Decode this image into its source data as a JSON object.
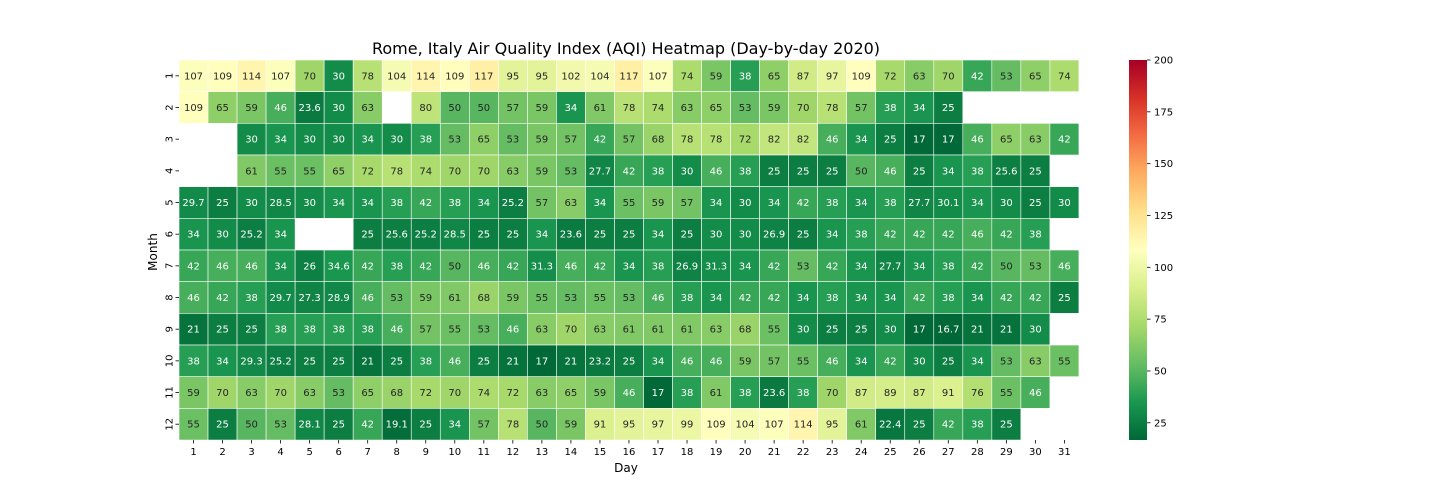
{
  "chart_data": {
    "type": "heatmap",
    "title": "Rome, Italy Air Quality Index (AQI) Heatmap (Day-by-day 2020)",
    "xlabel": "Day",
    "ylabel": "Month",
    "x": [
      "1",
      "2",
      "3",
      "4",
      "5",
      "6",
      "7",
      "8",
      "9",
      "10",
      "11",
      "12",
      "13",
      "14",
      "15",
      "16",
      "17",
      "18",
      "19",
      "20",
      "21",
      "22",
      "23",
      "24",
      "25",
      "26",
      "27",
      "28",
      "29",
      "30",
      "31"
    ],
    "y": [
      "1",
      "2",
      "3",
      "4",
      "5",
      "6",
      "7",
      "8",
      "9",
      "10",
      "11",
      "12"
    ],
    "values": [
      [
        "107",
        "109",
        "114",
        "107",
        "70",
        "30",
        "78",
        "104",
        "114",
        "109",
        "117",
        "95",
        "95",
        "102",
        "104",
        "117",
        "107",
        "74",
        "59",
        "38",
        "65",
        "87",
        "97",
        "109",
        "72",
        "63",
        "70",
        "42",
        "53",
        "65",
        "74"
      ],
      [
        "109",
        "65",
        "59",
        "46",
        "23.6",
        "30",
        "63",
        null,
        "80",
        "50",
        "50",
        "57",
        "59",
        "34",
        "61",
        "78",
        "74",
        "63",
        "65",
        "53",
        "59",
        "70",
        "78",
        "57",
        "38",
        "34",
        "25",
        null,
        null,
        null,
        null
      ],
      [
        null,
        null,
        "30",
        "34",
        "30",
        "30",
        "34",
        "30",
        "38",
        "53",
        "65",
        "53",
        "59",
        "57",
        "42",
        "57",
        "68",
        "78",
        "78",
        "72",
        "82",
        "82",
        "46",
        "34",
        "25",
        "17",
        "17",
        "46",
        "65",
        "63",
        "42"
      ],
      [
        null,
        null,
        "61",
        "55",
        "55",
        "65",
        "72",
        "78",
        "74",
        "70",
        "70",
        "63",
        "59",
        "53",
        "27.7",
        "42",
        "38",
        "30",
        "46",
        "38",
        "25",
        "25",
        "25",
        "50",
        "46",
        "25",
        "34",
        "38",
        "25.6",
        "25",
        null
      ],
      [
        "29.7",
        "25",
        "30",
        "28.5",
        "30",
        "34",
        "34",
        "38",
        "42",
        "38",
        "34",
        "25.2",
        "57",
        "63",
        "34",
        "55",
        "59",
        "57",
        "34",
        "30",
        "34",
        "42",
        "38",
        "34",
        "38",
        "27.7",
        "30.1",
        "34",
        "30",
        "25",
        "30"
      ],
      [
        "34",
        "30",
        "25.2",
        "34",
        null,
        null,
        "25",
        "25.6",
        "25.2",
        "28.5",
        "25",
        "25",
        "34",
        "23.6",
        "25",
        "25",
        "34",
        "25",
        "30",
        "30",
        "26.9",
        "25",
        "34",
        "38",
        "42",
        "42",
        "42",
        "46",
        "42",
        "38",
        null
      ],
      [
        "42",
        "46",
        "46",
        "34",
        "26",
        "34.6",
        "42",
        "38",
        "42",
        "50",
        "46",
        "42",
        "31.3",
        "46",
        "42",
        "34",
        "38",
        "26.9",
        "31.3",
        "34",
        "42",
        "53",
        "42",
        "34",
        "27.7",
        "34",
        "38",
        "42",
        "50",
        "53",
        "46"
      ],
      [
        "46",
        "42",
        "38",
        "29.7",
        "27.3",
        "28.9",
        "46",
        "53",
        "59",
        "61",
        "68",
        "59",
        "55",
        "53",
        "55",
        "53",
        "46",
        "38",
        "34",
        "42",
        "42",
        "34",
        "38",
        "34",
        "34",
        "42",
        "38",
        "34",
        "42",
        "42",
        "25"
      ],
      [
        "21",
        "25",
        "25",
        "38",
        "38",
        "38",
        "38",
        "46",
        "57",
        "55",
        "53",
        "46",
        "63",
        "70",
        "63",
        "61",
        "61",
        "61",
        "63",
        "68",
        "55",
        "30",
        "25",
        "25",
        "30",
        "17",
        "16.7",
        "21",
        "21",
        "30",
        null
      ],
      [
        "38",
        "34",
        "29.3",
        "25.2",
        "25",
        "25",
        "21",
        "25",
        "38",
        "46",
        "25",
        "21",
        "17",
        "21",
        "23.2",
        "25",
        "34",
        "46",
        "46",
        "59",
        "57",
        "55",
        "46",
        "34",
        "42",
        "30",
        "25",
        "34",
        "53",
        "63",
        "55"
      ],
      [
        "59",
        "70",
        "63",
        "70",
        "63",
        "53",
        "65",
        "68",
        "72",
        "70",
        "74",
        "72",
        "63",
        "65",
        "59",
        "46",
        "17",
        "38",
        "61",
        "38",
        "23.6",
        "38",
        "70",
        "87",
        "89",
        "87",
        "91",
        "76",
        "55",
        "46",
        null
      ],
      [
        "55",
        "25",
        "50",
        "53",
        "28.1",
        "25",
        "42",
        "19.1",
        "25",
        "34",
        "57",
        "78",
        "50",
        "59",
        "91",
        "95",
        "97",
        "99",
        "109",
        "104",
        "107",
        "114",
        "95",
        "61",
        "22.4",
        "25",
        "42",
        "38",
        "25",
        null,
        null
      ]
    ],
    "colorbar": {
      "colormap": "RdYlGn_r",
      "min": 16.7,
      "max": 200,
      "ticks": [
        "25",
        "50",
        "75",
        "100",
        "125",
        "150",
        "175",
        "200"
      ]
    }
  }
}
